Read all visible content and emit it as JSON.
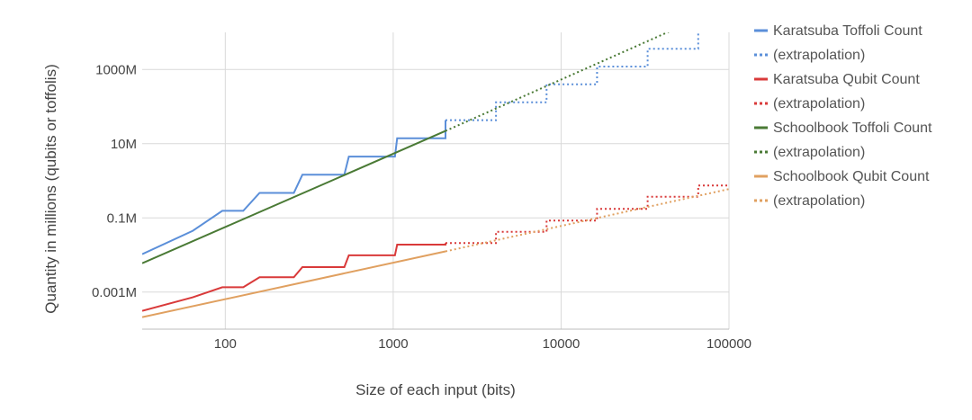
{
  "chart_data": {
    "type": "line",
    "title": "",
    "xlabel": "Size of each input (bits)",
    "ylabel": "Quantity in millions (qubits or toffolis)",
    "x_scale": "log",
    "y_scale": "log",
    "xlim": [
      32,
      100000
    ],
    "ylim": [
      0.0001,
      10000
    ],
    "x_ticks": [
      {
        "value": 100,
        "label": "100"
      },
      {
        "value": 1000,
        "label": "1000"
      },
      {
        "value": 10000,
        "label": "10000"
      },
      {
        "value": 100000,
        "label": "100000"
      }
    ],
    "y_ticks": [
      {
        "value": 0.001,
        "label": "0.001M"
      },
      {
        "value": 0.1,
        "label": "0.1M"
      },
      {
        "value": 10,
        "label": "10M"
      },
      {
        "value": 1000,
        "label": "1000M"
      }
    ],
    "grid": true,
    "legend_position": "right",
    "series": [
      {
        "name": "Karatsuba Toffoli Count",
        "color": "#5b8fd9",
        "style": "solid",
        "points": [
          [
            32,
            0.0105
          ],
          [
            64,
            0.045
          ],
          [
            96,
            0.155
          ],
          [
            128,
            0.155
          ],
          [
            160,
            0.47
          ],
          [
            256,
            0.47
          ],
          [
            288,
            1.45
          ],
          [
            512,
            1.45
          ],
          [
            544,
            4.5
          ],
          [
            1024,
            4.5
          ],
          [
            1056,
            14
          ],
          [
            2048,
            14
          ],
          [
            2048,
            43
          ]
        ]
      },
      {
        "name": "(extrapolation)",
        "color": "#5b8fd9",
        "style": "dotted",
        "points": [
          [
            2048,
            43
          ],
          [
            4096,
            43
          ],
          [
            4096,
            130
          ],
          [
            8192,
            130
          ],
          [
            8192,
            400
          ],
          [
            16384,
            400
          ],
          [
            16384,
            1200
          ],
          [
            32768,
            1200
          ],
          [
            32768,
            3600
          ],
          [
            65536,
            3600
          ],
          [
            65536,
            11000
          ]
        ]
      },
      {
        "name": "Karatsuba Qubit Count",
        "color": "#d93a3a",
        "style": "solid",
        "points": [
          [
            32,
            0.00031
          ],
          [
            64,
            0.00072
          ],
          [
            96,
            0.00135
          ],
          [
            128,
            0.00135
          ],
          [
            160,
            0.0025
          ],
          [
            256,
            0.0025
          ],
          [
            288,
            0.0047
          ],
          [
            512,
            0.0047
          ],
          [
            544,
            0.0098
          ],
          [
            1024,
            0.0098
          ],
          [
            1056,
            0.019
          ],
          [
            2048,
            0.019
          ],
          [
            2048,
            0.021
          ]
        ]
      },
      {
        "name": "(extrapolation)",
        "color": "#d93a3a",
        "style": "dotted",
        "points": [
          [
            2048,
            0.021
          ],
          [
            4096,
            0.021
          ],
          [
            4096,
            0.042
          ],
          [
            8192,
            0.042
          ],
          [
            8192,
            0.085
          ],
          [
            16384,
            0.085
          ],
          [
            16384,
            0.175
          ],
          [
            32768,
            0.175
          ],
          [
            32768,
            0.37
          ],
          [
            65536,
            0.37
          ],
          [
            65536,
            0.75
          ],
          [
            100000,
            0.75
          ]
        ]
      },
      {
        "name": "Schoolbook Toffoli Count",
        "color": "#4a7a35",
        "style": "solid",
        "points": [
          [
            32,
            0.006
          ],
          [
            2048,
            22
          ]
        ]
      },
      {
        "name": "(extrapolation)",
        "color": "#4a7a35",
        "style": "dotted",
        "points": [
          [
            2048,
            22
          ],
          [
            45000,
            11000
          ]
        ]
      },
      {
        "name": "Schoolbook Qubit Count",
        "color": "#e0a060",
        "style": "solid",
        "points": [
          [
            32,
            0.00021
          ],
          [
            2048,
            0.0125
          ]
        ]
      },
      {
        "name": "(extrapolation)",
        "color": "#e0a060",
        "style": "dotted",
        "points": [
          [
            2048,
            0.0125
          ],
          [
            100000,
            0.6
          ]
        ]
      }
    ]
  }
}
